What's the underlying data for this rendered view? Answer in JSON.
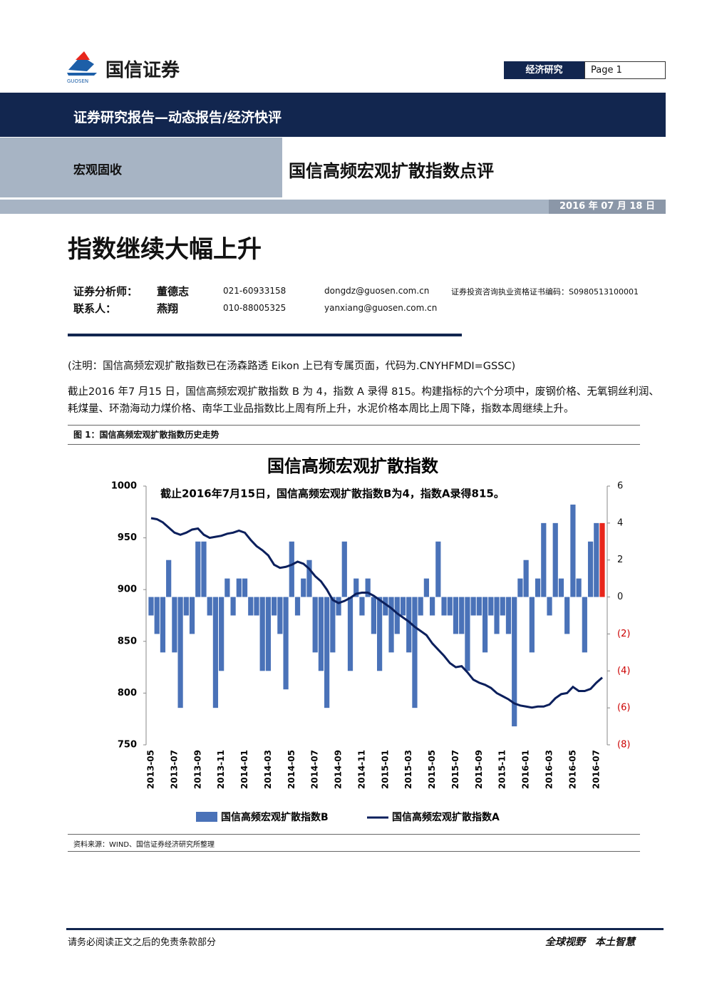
{
  "header": {
    "logo_text": "国信证券",
    "logo_sub": "GUOSEN",
    "section": "经济研究",
    "page": "Page 1",
    "banner": "证券研究报告—动态报告/经济快评",
    "category": "宏观固收",
    "report_title": "国信高频宏观扩散指数点评",
    "date": "2016 年 07 月 18 日"
  },
  "headline": "指数继续大幅上升",
  "analysts": {
    "rows": [
      [
        "证券分析师：",
        "董德志",
        "021-60933158",
        "dongdz@guosen.com.cn",
        "证券投资咨询执业资格证书编码：S0980513100001"
      ],
      [
        "联系人：",
        "燕翔",
        "010-88005325",
        "yanxiang@guosen.com.cn"
      ]
    ]
  },
  "body": {
    "note": "(注明：国信高频宏观扩散指数已在汤森路透 Eikon 上已有专属页面，代码为.CNYHFMDI=GSSC)",
    "paragraph": "截止2016 年7 月15 日，国信高频宏观扩散指数 B 为 4，指数 A 录得 815。构建指标的六个分项中，废钢价格、无氧铜丝利润、耗煤量、环渤海动力煤价格、南华工业品指数比上周有所上升，水泥价格本周比上周下降，指数本周继续上升。"
  },
  "figure": {
    "caption": "图 1：国信高频宏观扩散指数历史走势",
    "source": "资料来源：WIND、国信证券经济研究所整理"
  },
  "chart_data": {
    "type": "combo",
    "title": "国信高频宏观扩散指数",
    "annotation": "截止2016年7月15日，国信高频宏观扩散指数B为4，指数A录得815。",
    "categories": [
      "2013-05",
      null,
      null,
      null,
      "2013-07",
      null,
      null,
      null,
      "2013-09",
      null,
      null,
      null,
      "2013-11",
      null,
      null,
      null,
      "2014-01",
      null,
      null,
      null,
      "2014-03",
      null,
      null,
      null,
      "2014-05",
      null,
      null,
      null,
      "2014-07",
      null,
      null,
      null,
      "2014-09",
      null,
      null,
      null,
      "2014-11",
      null,
      null,
      null,
      "2015-01",
      null,
      null,
      null,
      "2015-03",
      null,
      null,
      null,
      "2015-05",
      null,
      null,
      null,
      "2015-07",
      null,
      null,
      null,
      "2015-09",
      null,
      null,
      null,
      "2015-11",
      null,
      null,
      null,
      "2016-01",
      null,
      null,
      null,
      "2016-03",
      null,
      null,
      null,
      "2016-05",
      null,
      null,
      null,
      "2016-07",
      null
    ],
    "series": [
      {
        "name": "国信高频宏观扩散指数B",
        "type": "bar",
        "axis": "y2",
        "color": "#4a72b8",
        "last_color": "#e8261c",
        "values": [
          -1,
          -2,
          -3,
          2,
          -3,
          -6,
          -1,
          -2,
          3,
          3,
          -1,
          -6,
          -4,
          1,
          -1,
          1,
          1,
          -1,
          -1,
          -4,
          -4,
          -1,
          -2,
          -5,
          3,
          -1,
          1,
          2,
          -3,
          -4,
          -6,
          -3,
          -1,
          3,
          -4,
          1,
          -1,
          1,
          -2,
          -4,
          -1,
          -3,
          -2,
          -1,
          -3,
          -6,
          -1,
          1,
          -1,
          3,
          -1,
          -1,
          -2,
          -2,
          -4,
          -1,
          -1,
          -3,
          -1,
          -2,
          -1,
          -2,
          -7,
          1,
          2,
          -3,
          1,
          4,
          -1,
          4,
          1,
          -2,
          5,
          1,
          -3,
          3,
          4,
          4
        ]
      },
      {
        "name": "国信高频宏观扩散指数A",
        "type": "line",
        "axis": "y",
        "color": "#0b1f5c",
        "values": [
          969,
          968,
          965,
          960,
          955,
          953,
          955,
          958,
          959,
          953,
          950,
          951,
          952,
          954,
          955,
          957,
          955,
          948,
          942,
          938,
          933,
          924,
          921,
          922,
          924,
          927,
          925,
          920,
          913,
          908,
          900,
          890,
          887,
          889,
          892,
          896,
          897,
          897,
          894,
          890,
          886,
          882,
          877,
          873,
          869,
          864,
          860,
          856,
          848,
          842,
          836,
          829,
          825,
          826,
          820,
          813,
          810,
          808,
          805,
          800,
          797,
          794,
          790,
          788,
          787,
          786,
          787,
          787,
          789,
          795,
          799,
          800,
          806,
          802,
          802,
          804,
          810,
          815
        ]
      }
    ],
    "ylim": [
      750,
      1000
    ],
    "yticks": [
      750,
      800,
      850,
      900,
      950,
      1000
    ],
    "y2lim": [
      -8,
      6
    ],
    "y2ticks": [
      {
        "value": -8,
        "label": "(8)"
      },
      {
        "value": -6,
        "label": "(6)"
      },
      {
        "value": -4,
        "label": "(4)"
      },
      {
        "value": -2,
        "label": "(2)"
      },
      0,
      2,
      4,
      6
    ]
  },
  "footer": {
    "left": "请务必阅读正文之后的免责条款部分",
    "right": "全球视野　本土智慧"
  }
}
